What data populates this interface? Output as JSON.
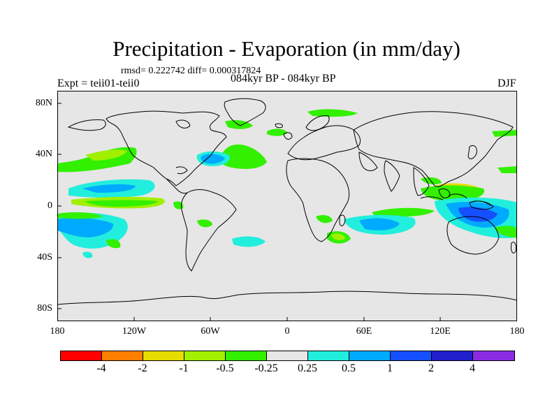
{
  "title": "Precipitation - Evaporation (in mm/day)",
  "stats": "rmsd= 0.222742  diff= 0.000317824",
  "expt": "Expt = teii01-teii0",
  "period": "084kyr BP - 084kyr BP",
  "season": "DJF",
  "y_ticks": [
    "80N",
    "40N",
    "0",
    "40S",
    "80S"
  ],
  "x_ticks": [
    "180",
    "120W",
    "60W",
    "0",
    "60E",
    "120E",
    "180"
  ],
  "colorbar": {
    "colors": [
      "#ff0000",
      "#ff8000",
      "#e6dc00",
      "#a0f000",
      "#32f000",
      "#e6e6e6",
      "#22eedd",
      "#00aaff",
      "#1450ff",
      "#2020cc",
      "#8a2be2"
    ],
    "labels": [
      "-4",
      "-2",
      "-1",
      "-0.5",
      "-0.25",
      "0.25",
      "0.5",
      "1",
      "2",
      "4"
    ]
  },
  "map_colors": {
    "ocean": "#e6e6e6",
    "green": "#32f000",
    "lightgreen": "#a0f000",
    "yellow": "#e6dc00",
    "cyan": "#22eedd",
    "lightblue": "#00aaff",
    "blue": "#1450ff"
  }
}
